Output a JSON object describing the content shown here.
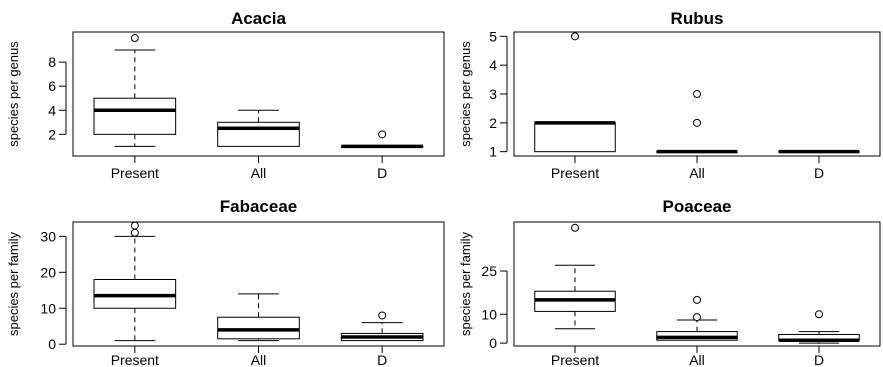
{
  "chart_data": [
    {
      "type": "box",
      "title": "Acacia",
      "ylabel": "species per genus",
      "ylim": [
        0.2,
        10.5
      ],
      "yticks": [
        2,
        4,
        6,
        8
      ],
      "categories": [
        "Present",
        "All",
        "D"
      ],
      "boxes": [
        {
          "category": "Present",
          "whisker_low": 1,
          "q1": 2,
          "median": 4,
          "q3": 5,
          "whisker_high": 9,
          "outliers": [
            10
          ]
        },
        {
          "category": "All",
          "whisker_low": 1,
          "q1": 1,
          "median": 2.5,
          "q3": 3,
          "whisker_high": 4,
          "outliers": []
        },
        {
          "category": "D",
          "whisker_low": 1,
          "q1": 1,
          "median": 1,
          "q3": 1,
          "whisker_high": 1,
          "outliers": [
            2
          ]
        }
      ]
    },
    {
      "type": "box",
      "title": "Rubus",
      "ylabel": "species per genus",
      "ylim": [
        0.85,
        5.15
      ],
      "yticks": [
        1,
        2,
        3,
        4,
        5
      ],
      "categories": [
        "Present",
        "All",
        "D"
      ],
      "boxes": [
        {
          "category": "Present",
          "whisker_low": 1,
          "q1": 1,
          "median": 2,
          "q3": 2,
          "whisker_high": 2,
          "outliers": [
            5
          ]
        },
        {
          "category": "All",
          "whisker_low": 1,
          "q1": 1,
          "median": 1,
          "q3": 1,
          "whisker_high": 1,
          "outliers": [
            2,
            3
          ]
        },
        {
          "category": "D",
          "whisker_low": 1,
          "q1": 1,
          "median": 1,
          "q3": 1,
          "whisker_high": 1,
          "outliers": []
        }
      ]
    },
    {
      "type": "box",
      "title": "Fabaceae",
      "ylabel": "species per family",
      "ylim": [
        -0.5,
        34
      ],
      "yticks": [
        0,
        10,
        20,
        30
      ],
      "categories": [
        "Present",
        "All",
        "D"
      ],
      "boxes": [
        {
          "category": "Present",
          "whisker_low": 1,
          "q1": 10,
          "median": 13.5,
          "q3": 18,
          "whisker_high": 30,
          "outliers": [
            31,
            33
          ]
        },
        {
          "category": "All",
          "whisker_low": 1,
          "q1": 1.5,
          "median": 4,
          "q3": 7.5,
          "whisker_high": 14,
          "outliers": []
        },
        {
          "category": "D",
          "whisker_low": 1,
          "q1": 1,
          "median": 2,
          "q3": 3,
          "whisker_high": 6,
          "outliers": [
            8
          ]
        }
      ]
    },
    {
      "type": "box",
      "title": "Poaceae",
      "ylabel": "species per family",
      "ylim": [
        -1,
        42
      ],
      "yticks": [
        0,
        10,
        25
      ],
      "categories": [
        "Present",
        "All",
        "D"
      ],
      "boxes": [
        {
          "category": "Present",
          "whisker_low": 5,
          "q1": 11,
          "median": 15,
          "q3": 18,
          "whisker_high": 27,
          "outliers": [
            40
          ]
        },
        {
          "category": "All",
          "whisker_low": 1,
          "q1": 1,
          "median": 2,
          "q3": 4,
          "whisker_high": 8,
          "outliers": [
            9,
            15
          ]
        },
        {
          "category": "D",
          "whisker_low": 0,
          "q1": 1,
          "median": 1,
          "q3": 3,
          "whisker_high": 4,
          "outliers": [
            10
          ]
        }
      ]
    }
  ]
}
